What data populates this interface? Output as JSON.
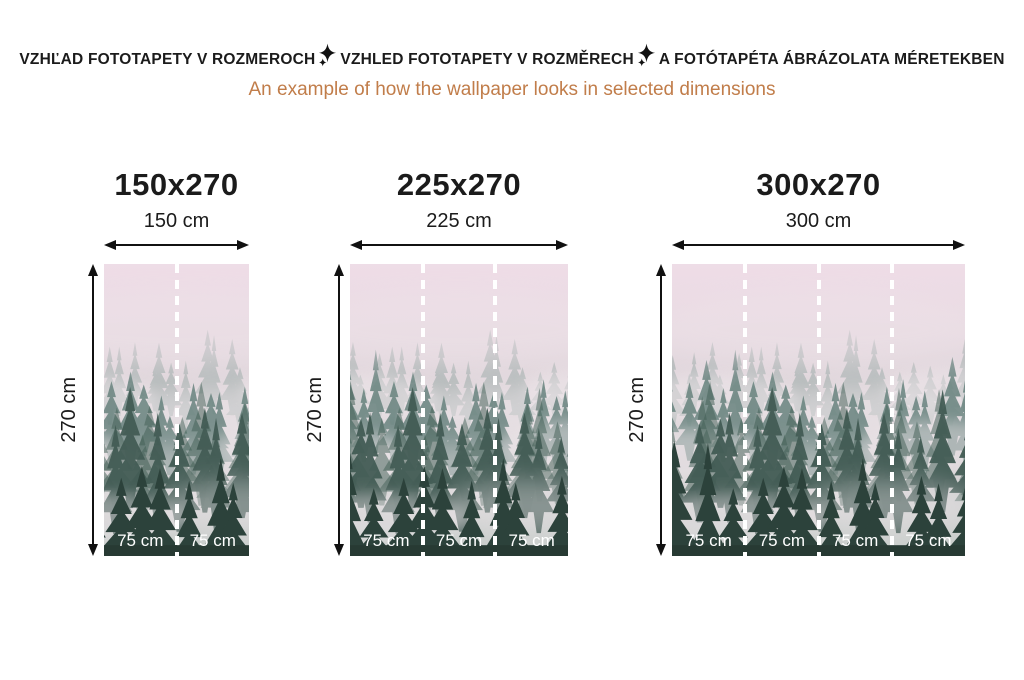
{
  "header": {
    "title_sk": "VZHĽAD FOTOTAPETY V ROZMEROCH",
    "title_cz": "VZHLED FOTOTAPETY V ROZMĚRECH",
    "title_hu": "A FOTÓTAPÉTA ÁBRÁZOLATA MÉRETEKBEN",
    "subtitle": "An example of how the wallpaper looks in selected dimensions",
    "separator_icon": "sparkle-icon"
  },
  "colors": {
    "accent_subtitle": "#c17d4a",
    "text": "#1b1b1b",
    "strip_label": "#ffffff",
    "sky": "#e4d9df",
    "tree_dark": "#2c423b"
  },
  "panels": [
    {
      "title": "150x270",
      "width_label": "150 cm",
      "height_label": "270 cm",
      "strips": [
        "75 cm",
        "75 cm"
      ]
    },
    {
      "title": "225x270",
      "width_label": "225 cm",
      "height_label": "270 cm",
      "strips": [
        "75 cm",
        "75 cm",
        "75 cm"
      ]
    },
    {
      "title": "300x270",
      "width_label": "300 cm",
      "height_label": "270 cm",
      "strips": [
        "75 cm",
        "75 cm",
        "75 cm",
        "75 cm"
      ]
    }
  ]
}
